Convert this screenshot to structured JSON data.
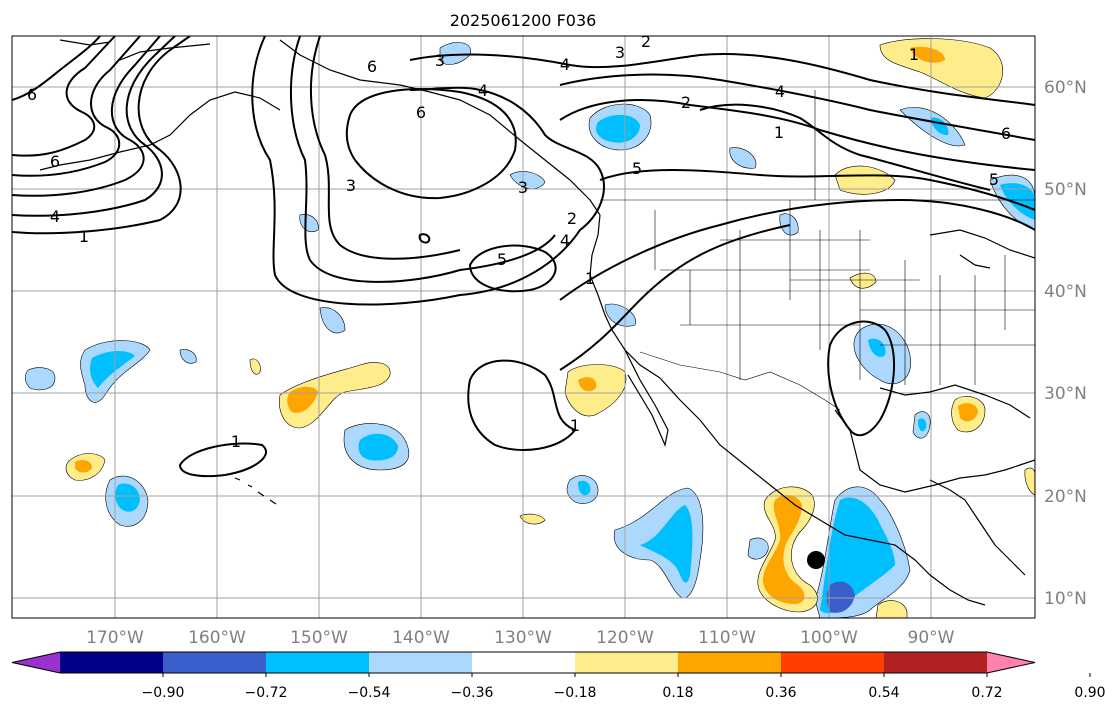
{
  "title": "2025061200 F036",
  "map": {
    "lon_labels": [
      "170°W",
      "160°W",
      "150°W",
      "140°W",
      "130°W",
      "120°W",
      "110°W",
      "100°W",
      "90°W"
    ],
    "lat_labels": [
      "60°N",
      "50°N",
      "40°N",
      "30°N",
      "20°N",
      "10°N"
    ],
    "contour_labels": [
      {
        "text": "6"
      },
      {
        "text": "6"
      },
      {
        "text": "4"
      },
      {
        "text": "1"
      },
      {
        "text": "3"
      },
      {
        "text": "6"
      },
      {
        "text": "3"
      },
      {
        "text": "4"
      },
      {
        "text": "6"
      },
      {
        "text": "3"
      },
      {
        "text": "2"
      },
      {
        "text": "4"
      },
      {
        "text": "5"
      },
      {
        "text": "1"
      },
      {
        "text": "3"
      },
      {
        "text": "2"
      },
      {
        "text": "4"
      },
      {
        "text": "2"
      },
      {
        "text": "1"
      },
      {
        "text": "4"
      },
      {
        "text": "5"
      },
      {
        "text": "6"
      },
      {
        "text": "5"
      },
      {
        "text": "1"
      },
      {
        "text": "1"
      },
      {
        "text": "1"
      }
    ],
    "colors": {
      "neg_strong": "#00bfff",
      "neg_weak": "#add8fe",
      "pos_weak": "#ffec8b",
      "pos_mid": "#ffa500",
      "neg_deep": "#3a5fcd",
      "grid": "#a0a0a0",
      "axis_label": "#808080"
    }
  },
  "colorbar": {
    "ticks": [
      "−0.90",
      "−0.72",
      "−0.54",
      "−0.36",
      "−0.18",
      "0.18",
      "0.36",
      "0.54",
      "0.72",
      "0.90"
    ],
    "colors": [
      "#9a32cd",
      "#00008b",
      "#3a5fcd",
      "#00bfff",
      "#add8fe",
      "#ffffff",
      "#ffec8b",
      "#ffa500",
      "#ff3f00",
      "#b22222",
      "#ff82ab"
    ]
  }
}
